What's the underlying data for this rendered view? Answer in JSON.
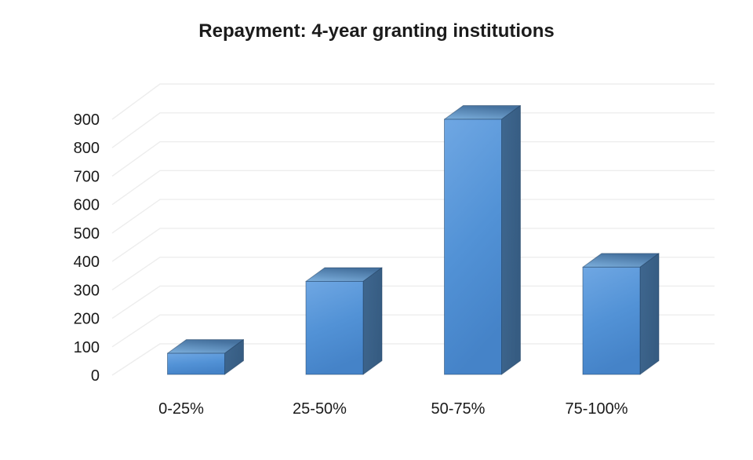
{
  "chart_data": {
    "type": "bar",
    "style": "3d-column",
    "title": "Repayment: 4-year granting institutions",
    "categories": [
      "0-25%",
      "25-50%",
      "50-75%",
      "75-100%"
    ],
    "values": [
      77,
      330,
      900,
      380
    ],
    "xlabel": "",
    "ylabel": "",
    "ylim": [
      0,
      900
    ],
    "ytick_step": 100,
    "ytick_labels": [
      "0",
      "100",
      "200",
      "300",
      "400",
      "500",
      "600",
      "700",
      "800",
      "900"
    ],
    "grid": true,
    "legend": "none",
    "colors": {
      "bar_front_light": "#6fa7e3",
      "bar_front_mid": "#5292d6",
      "bar_front_dark": "#4583c8",
      "bar_top_light": "#7db0de",
      "bar_top_dark": "#45719e",
      "bar_side_light": "#3f678f",
      "bar_side_dark": "#365c82",
      "bar_edge": "rgba(30,62,96,0.5)",
      "gridline": "#ededed",
      "text": "#1a1a1a",
      "background": "#ffffff"
    }
  }
}
